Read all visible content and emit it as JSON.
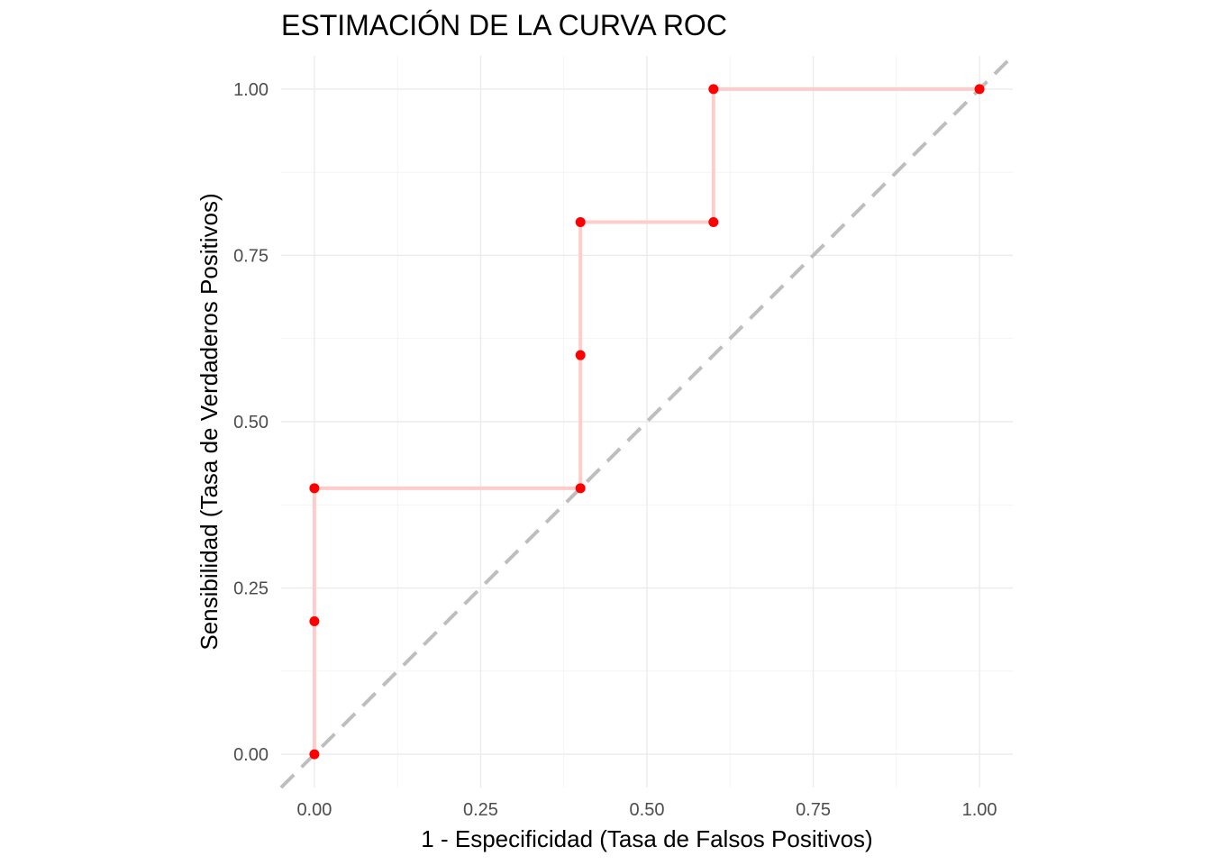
{
  "chart_data": {
    "type": "line",
    "title": "ESTIMACIÓN DE LA CURVA ROC",
    "xlabel": "1 - Especificidad (Tasa de Falsos Positivos)",
    "ylabel": "Sensibilidad (Tasa de Verdaderos Positivos)",
    "xlim": [
      -0.05,
      1.05
    ],
    "ylim": [
      -0.05,
      1.05
    ],
    "x_ticks": [
      0,
      0.25,
      0.5,
      0.75,
      1
    ],
    "y_ticks": [
      0,
      0.25,
      0.5,
      0.75,
      1
    ],
    "x_tick_labels": [
      "0.00",
      "0.25",
      "0.50",
      "0.75",
      "1.00"
    ],
    "y_tick_labels": [
      "0.00",
      "0.25",
      "0.50",
      "0.75",
      "1.00"
    ],
    "grid": true,
    "legend": "none",
    "series": [
      {
        "style": "step",
        "color": "#ffcccc",
        "points": [
          {
            "x": 0.0,
            "y": 0.0
          },
          {
            "x": 0.0,
            "y": 0.2
          },
          {
            "x": 0.0,
            "y": 0.4
          },
          {
            "x": 0.4,
            "y": 0.4
          },
          {
            "x": 0.4,
            "y": 0.6
          },
          {
            "x": 0.4,
            "y": 0.8
          },
          {
            "x": 0.6,
            "y": 0.8
          },
          {
            "x": 0.6,
            "y": 1.0
          },
          {
            "x": 1.0,
            "y": 1.0
          }
        ],
        "marker_color": "#ff0000"
      }
    ],
    "reference_line": {
      "from": [
        0,
        0
      ],
      "to": [
        1,
        1
      ],
      "style": "dashed",
      "color": "#bebebe"
    }
  }
}
